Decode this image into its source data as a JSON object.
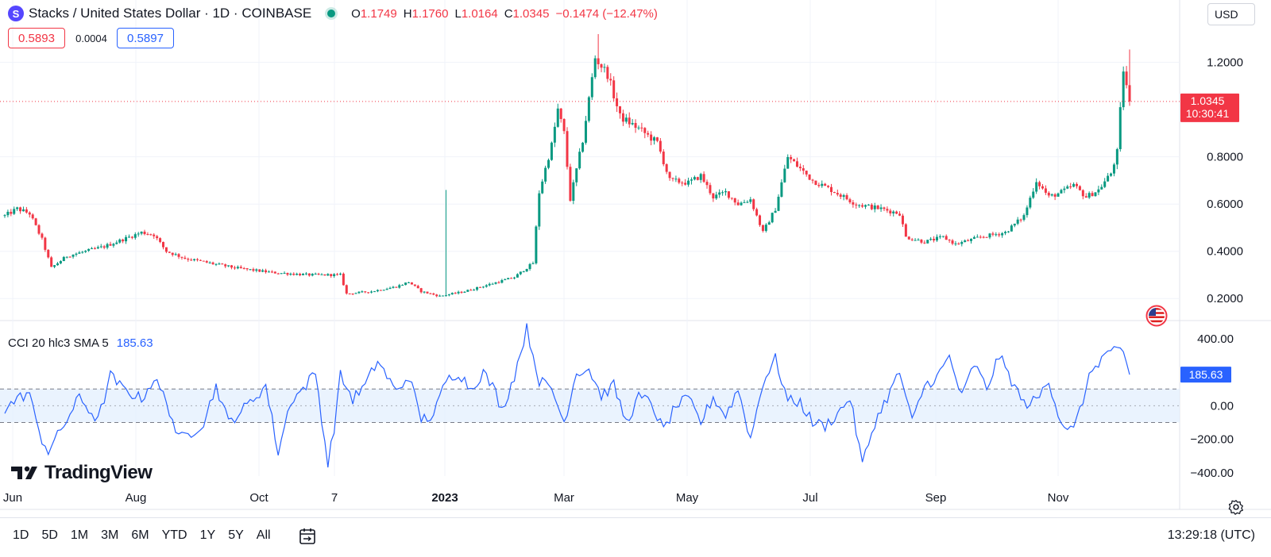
{
  "header": {
    "logo_glyph": "S",
    "title": "Stacks / United States Dollar · 1D · COINBASE",
    "ohlc": {
      "o_label": "O",
      "o_value": "1.1749",
      "h_label": "H",
      "h_value": "1.1760",
      "l_label": "L",
      "l_value": "1.0164",
      "c_label": "C",
      "c_value": "1.0345",
      "change": "−0.1474 (−12.47%)"
    },
    "sell_price": "0.5893",
    "spread": "0.0004",
    "buy_price": "0.5897",
    "currency": "USD"
  },
  "last_price_tag": {
    "price": "1.0345",
    "countdown": "10:30:41"
  },
  "cci": {
    "label": "CCI 20 hlc3 SMA 5",
    "value": "185.63"
  },
  "brand": "TradingView",
  "range_buttons": [
    "1D",
    "5D",
    "1M",
    "3M",
    "6M",
    "YTD",
    "1Y",
    "5Y",
    "All"
  ],
  "clock": "13:29:18 (UTC)",
  "colors": {
    "up": "#089981",
    "down": "#f23645",
    "cci_line": "#2962ff",
    "band_fill": "#e3effd"
  },
  "icons": {
    "calendar": "calendar-range-icon",
    "settings": "gear-icon",
    "flag": "us-flag-icon"
  },
  "chart_data": {
    "type": "candlestick",
    "y_axis": {
      "ticks": [
        "1.2000",
        "0.8000",
        "0.6000",
        "0.4000",
        "0.2000"
      ],
      "range": [
        0.12,
        1.33
      ]
    },
    "x_axis": {
      "ticks": [
        "Jun",
        "Aug",
        "Oct",
        "7",
        "2023",
        "Mar",
        "May",
        "Jul",
        "Sep",
        "Nov"
      ]
    },
    "last_price": 1.0345,
    "price_path": [
      [
        0,
        0.55
      ],
      [
        4,
        0.58
      ],
      [
        8,
        0.56
      ],
      [
        12,
        0.45
      ],
      [
        15,
        0.33
      ],
      [
        20,
        0.38
      ],
      [
        26,
        0.4
      ],
      [
        32,
        0.42
      ],
      [
        38,
        0.45
      ],
      [
        44,
        0.48
      ],
      [
        48,
        0.47
      ],
      [
        52,
        0.4
      ],
      [
        58,
        0.37
      ],
      [
        66,
        0.35
      ],
      [
        74,
        0.33
      ],
      [
        86,
        0.31
      ],
      [
        98,
        0.3
      ],
      [
        108,
        0.3
      ],
      [
        110,
        0.22
      ],
      [
        118,
        0.23
      ],
      [
        126,
        0.25
      ],
      [
        130,
        0.27
      ],
      [
        134,
        0.23
      ],
      [
        140,
        0.21
      ],
      [
        148,
        0.23
      ],
      [
        156,
        0.26
      ],
      [
        164,
        0.29
      ],
      [
        170,
        0.35
      ],
      [
        172,
        0.65
      ],
      [
        176,
        0.85
      ],
      [
        178,
        1.0
      ],
      [
        180,
        0.9
      ],
      [
        182,
        0.62
      ],
      [
        186,
        0.87
      ],
      [
        190,
        1.22
      ],
      [
        194,
        1.15
      ],
      [
        198,
        0.97
      ],
      [
        204,
        0.92
      ],
      [
        210,
        0.86
      ],
      [
        214,
        0.7
      ],
      [
        220,
        0.69
      ],
      [
        224,
        0.72
      ],
      [
        228,
        0.63
      ],
      [
        232,
        0.65
      ],
      [
        236,
        0.6
      ],
      [
        240,
        0.62
      ],
      [
        244,
        0.48
      ],
      [
        248,
        0.58
      ],
      [
        252,
        0.8
      ],
      [
        256,
        0.75
      ],
      [
        260,
        0.7
      ],
      [
        266,
        0.66
      ],
      [
        274,
        0.6
      ],
      [
        282,
        0.58
      ],
      [
        288,
        0.56
      ],
      [
        290,
        0.46
      ],
      [
        296,
        0.44
      ],
      [
        302,
        0.46
      ],
      [
        306,
        0.43
      ],
      [
        314,
        0.46
      ],
      [
        322,
        0.48
      ],
      [
        328,
        0.55
      ],
      [
        332,
        0.7
      ],
      [
        336,
        0.63
      ],
      [
        340,
        0.65
      ],
      [
        344,
        0.68
      ],
      [
        348,
        0.63
      ],
      [
        352,
        0.66
      ],
      [
        356,
        0.73
      ],
      [
        358,
        0.82
      ],
      [
        360,
        1.17
      ],
      [
        362,
        1.0345
      ]
    ],
    "cci_path": [
      [
        0,
        -20
      ],
      [
        4,
        40
      ],
      [
        8,
        80
      ],
      [
        10,
        -100
      ],
      [
        12,
        -200
      ],
      [
        14,
        -270
      ],
      [
        18,
        -150
      ],
      [
        24,
        50
      ],
      [
        30,
        -90
      ],
      [
        34,
        180
      ],
      [
        38,
        100
      ],
      [
        44,
        40
      ],
      [
        48,
        160
      ],
      [
        52,
        30
      ],
      [
        56,
        -200
      ],
      [
        60,
        -160
      ],
      [
        64,
        -100
      ],
      [
        68,
        120
      ],
      [
        72,
        -100
      ],
      [
        78,
        0
      ],
      [
        84,
        120
      ],
      [
        88,
        -280
      ],
      [
        92,
        30
      ],
      [
        96,
        100
      ],
      [
        100,
        200
      ],
      [
        104,
        -350
      ],
      [
        106,
        -130
      ],
      [
        108,
        180
      ],
      [
        112,
        40
      ],
      [
        116,
        120
      ],
      [
        120,
        270
      ],
      [
        126,
        80
      ],
      [
        130,
        180
      ],
      [
        134,
        -80
      ],
      [
        138,
        -60
      ],
      [
        142,
        150
      ],
      [
        146,
        200
      ],
      [
        150,
        100
      ],
      [
        154,
        200
      ],
      [
        158,
        80
      ],
      [
        160,
        -30
      ],
      [
        164,
        180
      ],
      [
        168,
        460
      ],
      [
        172,
        150
      ],
      [
        176,
        100
      ],
      [
        180,
        -100
      ],
      [
        184,
        200
      ],
      [
        188,
        220
      ],
      [
        192,
        60
      ],
      [
        196,
        120
      ],
      [
        200,
        -100
      ],
      [
        204,
        50
      ],
      [
        208,
        20
      ],
      [
        212,
        -150
      ],
      [
        216,
        0
      ],
      [
        220,
        40
      ],
      [
        224,
        -100
      ],
      [
        228,
        50
      ],
      [
        232,
        -60
      ],
      [
        236,
        100
      ],
      [
        240,
        -200
      ],
      [
        244,
        140
      ],
      [
        248,
        280
      ],
      [
        252,
        30
      ],
      [
        256,
        20
      ],
      [
        260,
        -100
      ],
      [
        264,
        -120
      ],
      [
        268,
        -50
      ],
      [
        272,
        50
      ],
      [
        276,
        -350
      ],
      [
        280,
        -100
      ],
      [
        284,
        50
      ],
      [
        288,
        200
      ],
      [
        292,
        -100
      ],
      [
        296,
        120
      ],
      [
        300,
        170
      ],
      [
        304,
        290
      ],
      [
        308,
        50
      ],
      [
        312,
        250
      ],
      [
        316,
        100
      ],
      [
        320,
        300
      ],
      [
        324,
        150
      ],
      [
        328,
        10
      ],
      [
        332,
        30
      ],
      [
        336,
        150
      ],
      [
        340,
        -100
      ],
      [
        344,
        -150
      ],
      [
        348,
        100
      ],
      [
        350,
        220
      ],
      [
        352,
        260
      ],
      [
        356,
        340
      ],
      [
        360,
        300
      ],
      [
        362,
        185.63
      ]
    ],
    "cci_axis": {
      "ticks": [
        "400.00",
        "0.00",
        "−200.00",
        "−400.00"
      ],
      "range": [
        -420,
        480
      ],
      "band": [
        -100,
        100
      ]
    }
  }
}
